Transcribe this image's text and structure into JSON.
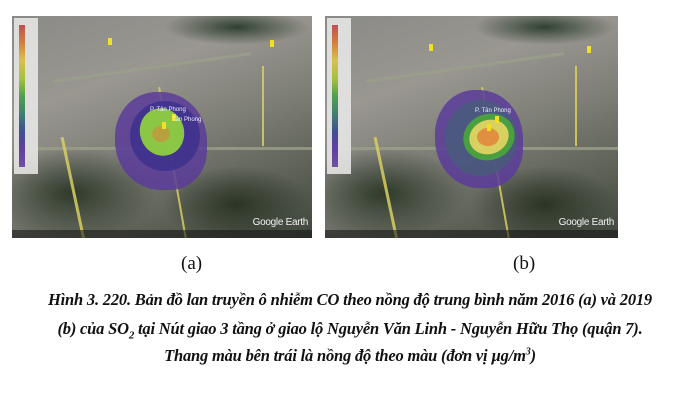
{
  "figures": [
    {
      "label": "(a)",
      "watermark": "Google Earth",
      "places": [
        "P. Tân Phong",
        "Tân Phong"
      ]
    },
    {
      "label": "(b)",
      "watermark": "Google Earth",
      "places": [
        "P. Tân Phong"
      ]
    }
  ],
  "caption": {
    "line1": "Hình 3. 220. Bản đồ lan truyền ô nhiễm CO theo nồng độ trung bình năm 2016 (a) và 2019",
    "line2_pre": "(b) của SO",
    "line2_sub": "2",
    "line2_post": " tại Nút giao 3 tầng ở giao lộ Nguyễn Văn Linh - Nguyễn Hữu Thọ (quận 7).",
    "line3_pre": "Thang màu bên trái là nồng độ theo màu (đơn vị µg/m",
    "line3_sup": "3",
    "line3_post": ")"
  },
  "colors": {
    "scale": [
      "#c05050",
      "#d08040",
      "#d8c050",
      "#a8c040",
      "#50a050",
      "#408070",
      "#405090",
      "#6040a0"
    ]
  }
}
